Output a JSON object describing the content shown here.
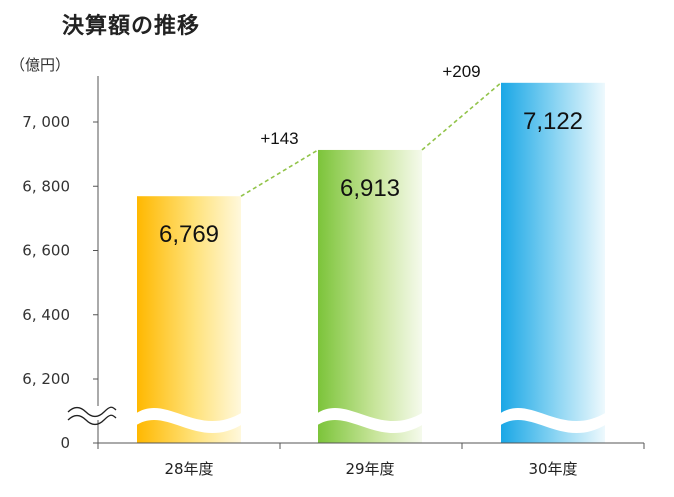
{
  "title": "決算額の推移",
  "chart_data": {
    "type": "bar",
    "title": "決算額の推移",
    "unit_label": "（億円）",
    "categories": [
      "28年度",
      "29年度",
      "30年度"
    ],
    "values": [
      6769,
      6913,
      7122
    ],
    "value_labels": [
      "6,769",
      "6,913",
      "7,122"
    ],
    "differences": [
      {
        "from": "28年度",
        "to": "29年度",
        "label": "+143"
      },
      {
        "from": "29年度",
        "to": "30年度",
        "label": "+209"
      }
    ],
    "y_ticks": [
      {
        "value": 7000,
        "label": "7, 000"
      },
      {
        "value": 6800,
        "label": "6, 800"
      },
      {
        "value": 6600,
        "label": "6, 600"
      },
      {
        "value": 6400,
        "label": "6, 400"
      },
      {
        "value": 6200,
        "label": "6, 200"
      },
      {
        "value": 0,
        "label": "0"
      }
    ],
    "ylim": [
      6100,
      7150
    ],
    "axis_break": true,
    "grid": false,
    "bar_gradients": [
      [
        "#ffb800",
        "#ffe27a",
        "#fff8dc"
      ],
      [
        "#7cc43a",
        "#c8e59b",
        "#f5faec"
      ],
      [
        "#1aa7e6",
        "#8fd6f3",
        "#eef9fd"
      ]
    ],
    "connector_color": "#92c44a"
  }
}
